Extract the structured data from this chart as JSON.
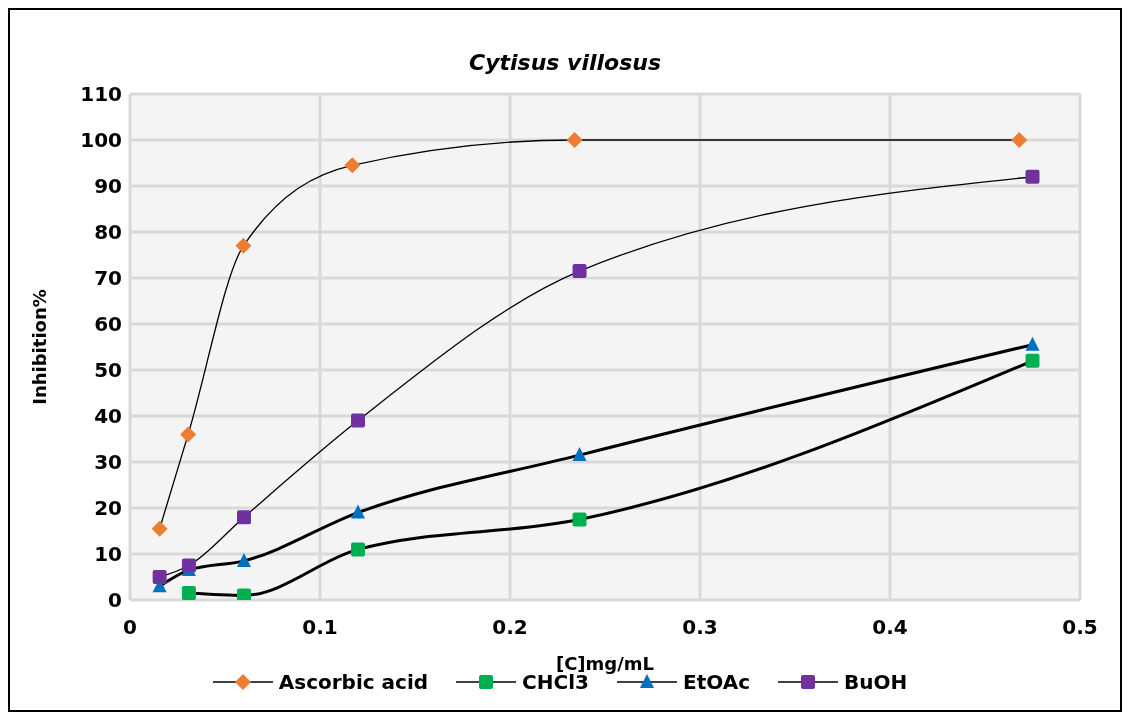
{
  "chart_data": {
    "type": "line",
    "title": "Cytisus villosus",
    "xlabel": "[C]mg/mL",
    "ylabel": "Inhibition%",
    "xlim": [
      0,
      0.5
    ],
    "xticks": [
      0,
      0.1,
      0.2,
      0.3,
      0.4,
      0.5
    ],
    "ylim": [
      0,
      110
    ],
    "yticks": [
      0,
      10,
      20,
      30,
      40,
      50,
      60,
      70,
      80,
      90,
      100,
      110
    ],
    "grid": true,
    "legend": "bottom",
    "series": [
      {
        "name": "Ascorbic acid",
        "color": "#ed7d31",
        "marker": "diamond",
        "x": [
          0.0156,
          0.0306,
          0.0597,
          0.117,
          0.234,
          0.468
        ],
        "values": [
          15.5,
          36,
          77,
          94.5,
          100,
          100
        ]
      },
      {
        "name": "CHCl3",
        "color": "#00b050",
        "marker": "square",
        "x": [
          0.031,
          0.06,
          0.12,
          0.2366,
          0.475
        ],
        "values": [
          1.5,
          1,
          11,
          17.5,
          52
        ]
      },
      {
        "name": "EtOAc",
        "color": "#0070c0",
        "marker": "triangle",
        "x": [
          0.0156,
          0.031,
          0.06,
          0.12,
          0.2366,
          0.475
        ],
        "values": [
          3,
          6.5,
          8.5,
          19,
          31.5,
          55.5
        ]
      },
      {
        "name": "BuOH",
        "color": "#7030a0",
        "marker": "square",
        "x": [
          0.0156,
          0.031,
          0.06,
          0.12,
          0.2366,
          0.475
        ],
        "values": [
          5,
          7.5,
          18,
          39,
          71.5,
          92
        ]
      }
    ]
  }
}
